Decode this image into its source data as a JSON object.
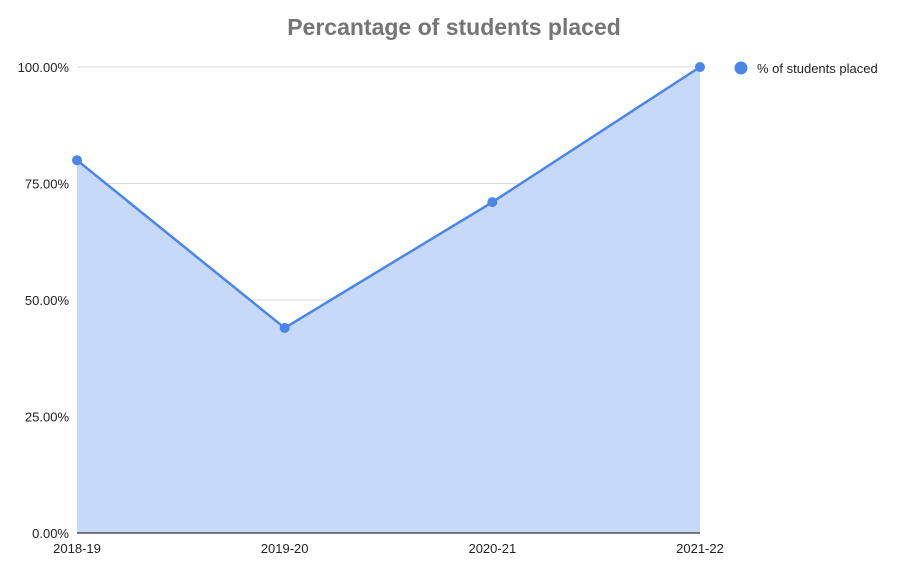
{
  "chart_data": {
    "type": "area",
    "title": "Percantage of students placed",
    "xlabel": "",
    "ylabel": "",
    "categories": [
      "2018-19",
      "2019-20",
      "2020-21",
      "2021-22"
    ],
    "series": [
      {
        "name": "% of students placed",
        "values": [
          80,
          44,
          71,
          100
        ]
      }
    ],
    "ylim": [
      0,
      100
    ],
    "yticks": [
      "0.00%",
      "25.00%",
      "50.00%",
      "75.00%",
      "100.00%"
    ],
    "grid": true,
    "legend": "right",
    "colors": {
      "line": "#4a86e8",
      "fill": "#c6d9f8",
      "grid": "#d9d9d9",
      "axis": "#333333"
    }
  }
}
